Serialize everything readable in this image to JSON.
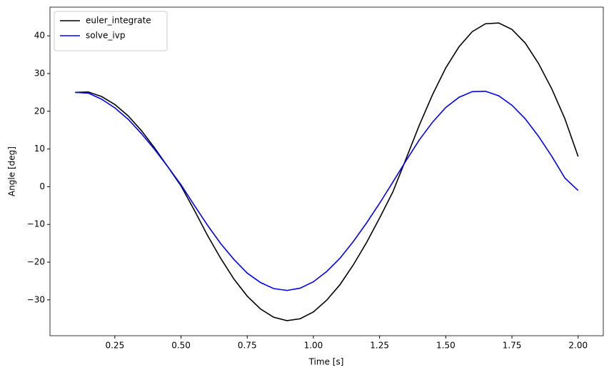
{
  "chart_data": {
    "type": "line",
    "xlabel": "Time [s]",
    "ylabel": "Angle [deg]",
    "x": [
      0.1,
      0.15,
      0.2,
      0.25,
      0.3,
      0.35,
      0.4,
      0.45,
      0.5,
      0.55,
      0.6,
      0.65,
      0.7,
      0.75,
      0.8,
      0.85,
      0.9,
      0.95,
      1.0,
      1.05,
      1.1,
      1.15,
      1.2,
      1.25,
      1.3,
      1.35,
      1.4,
      1.45,
      1.5,
      1.55,
      1.6,
      1.65,
      1.7,
      1.75,
      1.8,
      1.85,
      1.9,
      1.95,
      2.0
    ],
    "series": [
      {
        "name": "euler_integrate",
        "color": "#000000",
        "values": [
          25.0,
          25.1,
          23.9,
          21.8,
          18.8,
          14.9,
          10.3,
          5.3,
          0.2,
          -6.2,
          -12.9,
          -19.0,
          -24.5,
          -29.0,
          -32.4,
          -34.6,
          -35.5,
          -35.0,
          -33.2,
          -30.1,
          -26.0,
          -20.8,
          -14.9,
          -8.3,
          -1.4,
          7.4,
          16.3,
          24.4,
          31.5,
          37.1,
          41.1,
          43.2,
          43.4,
          41.7,
          38.1,
          32.7,
          26.0,
          18.0,
          8.0
        ]
      },
      {
        "name": "solve_ivp",
        "color": "#0000ff",
        "values": [
          25.0,
          24.8,
          23.2,
          20.9,
          17.9,
          14.1,
          9.9,
          5.3,
          0.5,
          -4.9,
          -10.2,
          -15.1,
          -19.3,
          -22.9,
          -25.4,
          -27.0,
          -27.5,
          -26.9,
          -25.2,
          -22.5,
          -19.0,
          -14.6,
          -9.7,
          -4.4,
          1.2,
          6.9,
          12.4,
          17.1,
          21.0,
          23.7,
          25.2,
          25.3,
          24.1,
          21.6,
          18.0,
          13.4,
          8.1,
          2.3,
          -1.0
        ]
      }
    ],
    "xlim": [
      0.005,
      2.095
    ],
    "xticks": [
      {
        "value": 0.25,
        "label": "0.25"
      },
      {
        "value": 0.5,
        "label": "0.50"
      },
      {
        "value": 0.75,
        "label": "0.75"
      },
      {
        "value": 1.0,
        "label": "1.00"
      },
      {
        "value": 1.25,
        "label": "1.25"
      },
      {
        "value": 1.5,
        "label": "1.50"
      },
      {
        "value": 1.75,
        "label": "1.75"
      },
      {
        "value": 2.0,
        "label": "2.00"
      }
    ],
    "ylim": [
      -39.5,
      47.6
    ],
    "yticks": [
      {
        "value": -30,
        "label": "−30"
      },
      {
        "value": -20,
        "label": "−20"
      },
      {
        "value": -10,
        "label": "−10"
      },
      0,
      10,
      20,
      30,
      40
    ],
    "grid": false,
    "legend": "upper left"
  }
}
